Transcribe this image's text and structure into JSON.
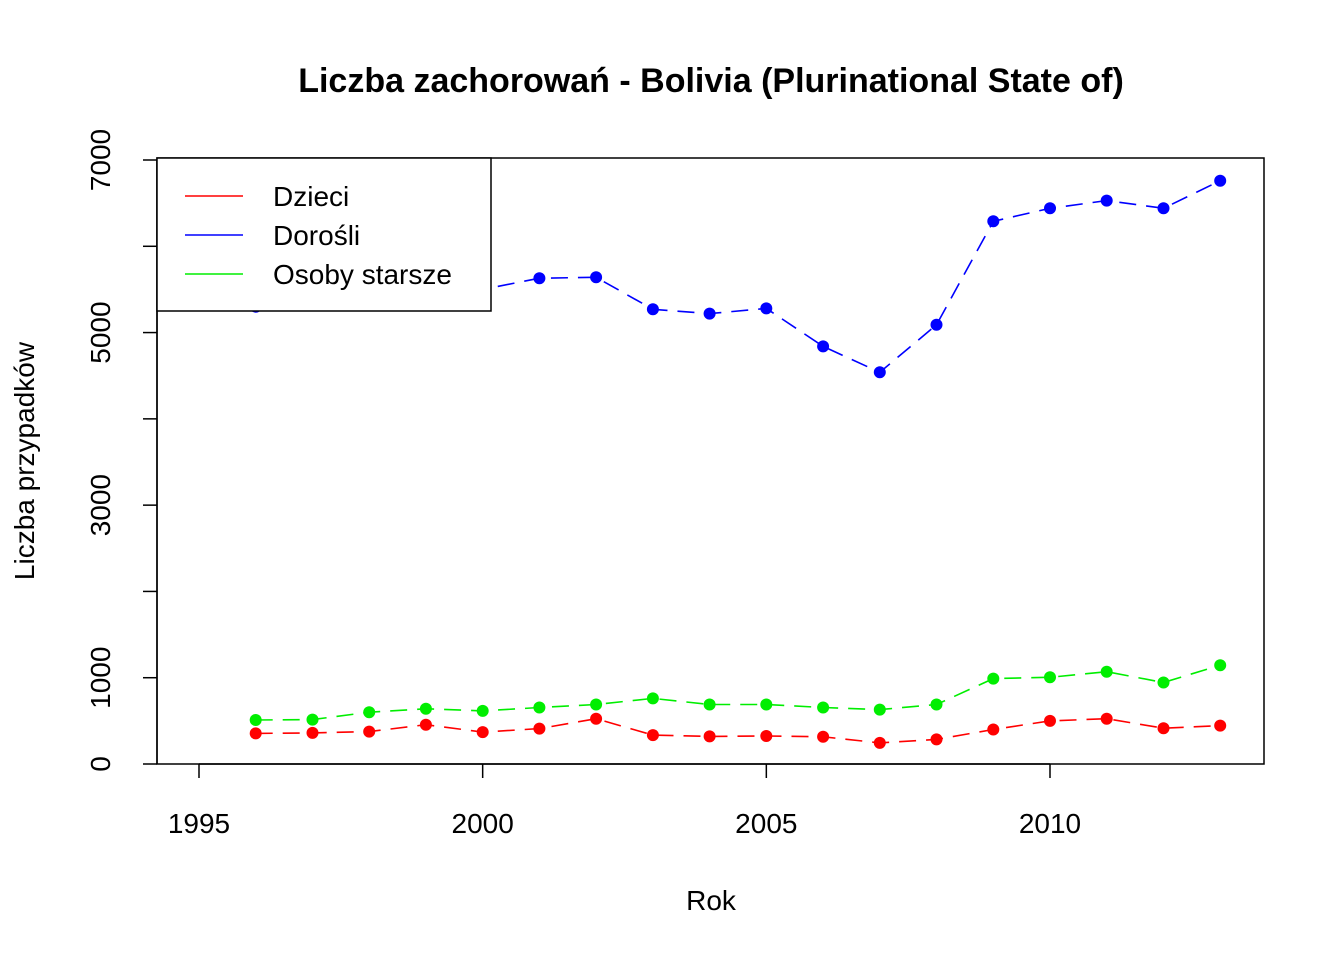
{
  "chart_data": {
    "type": "line",
    "title": "Liczba zachorowań -  Bolivia (Plurinational State of)",
    "xlabel": "Rok",
    "ylabel": "Liczba przypadków",
    "xlim": [
      1994.4,
      2013.7
    ],
    "ylim": [
      0,
      7000
    ],
    "x_ticks": [
      1995,
      2000,
      2005,
      2010
    ],
    "x_tick_labels": [
      "1995",
      "2000",
      "2005",
      "2010"
    ],
    "y_ticks": [
      0,
      1000,
      2000,
      3000,
      4000,
      5000,
      6000,
      7000
    ],
    "y_tick_labels": [
      "0",
      "1000",
      "",
      "3000",
      "",
      "5000",
      "",
      "7000"
    ],
    "grid": false,
    "legend_position": "top-left",
    "x": [
      1996,
      1997,
      1998,
      1999,
      2000,
      2001,
      2002,
      2003,
      2004,
      2005,
      2006,
      2007,
      2008,
      2009,
      2010,
      2011,
      2012,
      2013
    ],
    "series": [
      {
        "name": "Dzieci",
        "color": "#ff0000",
        "values": [
          355,
          360,
          375,
          455,
          370,
          410,
          525,
          335,
          320,
          325,
          315,
          245,
          285,
          400,
          500,
          525,
          415,
          445
        ]
      },
      {
        "name": "Dorośli",
        "color": "#0000ff",
        "values": [
          5300,
          5350,
          5400,
          5450,
          5500,
          5630,
          5640,
          5270,
          5220,
          5280,
          4840,
          4540,
          5090,
          6290,
          6440,
          6530,
          6440,
          6760
        ]
      },
      {
        "name": "Osoby starsze",
        "color": "#00ee00",
        "values": [
          510,
          515,
          600,
          640,
          615,
          655,
          690,
          760,
          690,
          690,
          655,
          630,
          690,
          990,
          1005,
          1070,
          945,
          1145
        ]
      }
    ]
  }
}
